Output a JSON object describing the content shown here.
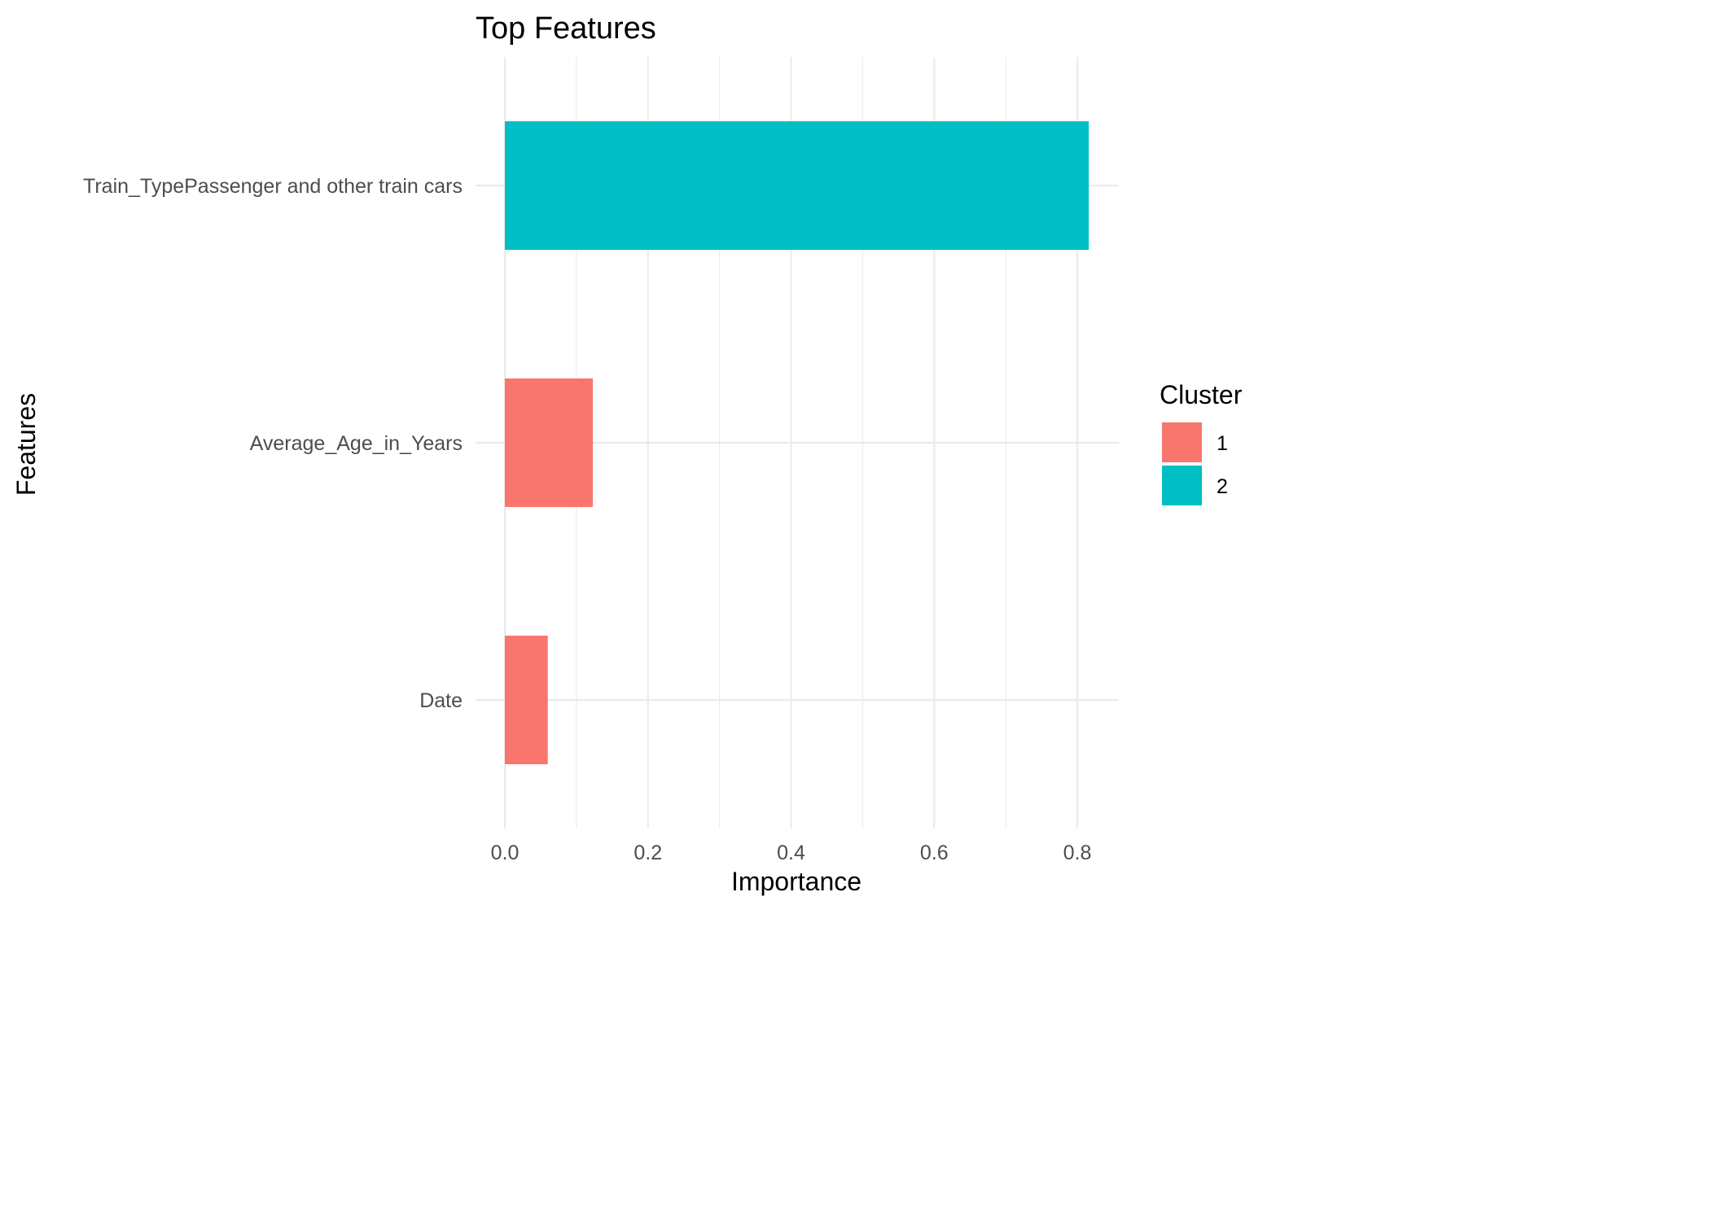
{
  "chart_data": {
    "type": "bar",
    "orientation": "horizontal",
    "title": "Top Features",
    "xlabel": "Importance",
    "ylabel": "Features",
    "categories": [
      "Train_TypePassenger and other train cars",
      "Average_Age_in_Years",
      "Date"
    ],
    "values": [
      0.816,
      0.123,
      0.06
    ],
    "cluster": [
      "2",
      "1",
      "1"
    ],
    "xlim": [
      0,
      0.856
    ],
    "xticks": [
      0.0,
      0.2,
      0.4,
      0.6,
      0.8
    ],
    "xtick_labels": [
      "0.0",
      "0.2",
      "0.4",
      "0.6",
      "0.8"
    ],
    "grid": true,
    "legend": {
      "title": "Cluster",
      "placement": "right",
      "entries": [
        {
          "label": "1",
          "color": "#F8766D"
        },
        {
          "label": "2",
          "color": "#00BFC4"
        }
      ]
    },
    "colors": {
      "1": "#F8766D",
      "2": "#00BFC4"
    }
  }
}
